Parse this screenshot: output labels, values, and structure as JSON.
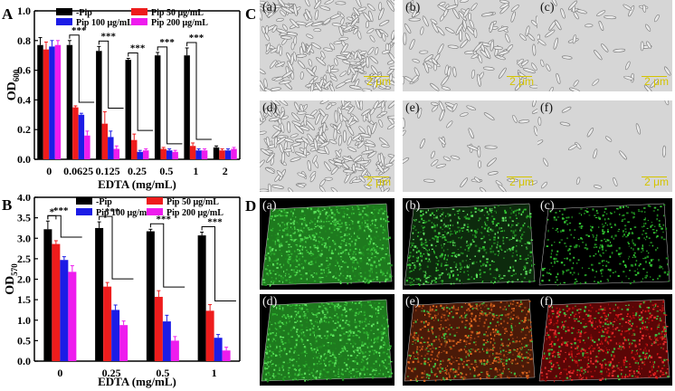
{
  "panel_A": {
    "letter": "A",
    "chart_data": {
      "type": "bar",
      "categories": [
        "0",
        "0.0625",
        "0.125",
        "0.25",
        "0.5",
        "1",
        "2"
      ],
      "series": [
        {
          "name": "-Pip",
          "color": "#000000",
          "values": [
            0.77,
            0.77,
            0.73,
            0.67,
            0.7,
            0.7,
            0.08
          ],
          "err": [
            0.05,
            0.03,
            0.03,
            0.01,
            0.02,
            0.05,
            0.01
          ]
        },
        {
          "name": "Pip 50 μg/mL",
          "color": "#ee1c1c",
          "values": [
            0.74,
            0.35,
            0.24,
            0.13,
            0.07,
            0.09,
            0.06
          ],
          "err": [
            0.05,
            0.01,
            0.08,
            0.04,
            0.01,
            0.02,
            0.01
          ]
        },
        {
          "name": "Pip 100 μg/mL",
          "color": "#1c1ce6",
          "values": [
            0.76,
            0.3,
            0.15,
            0.05,
            0.06,
            0.06,
            0.06
          ],
          "err": [
            0.04,
            0.01,
            0.04,
            0.01,
            0.01,
            0.01,
            0.01
          ]
        },
        {
          "name": "Pip 200 μg/mL",
          "color": "#ee1cee",
          "values": [
            0.77,
            0.16,
            0.07,
            0.06,
            0.05,
            0.06,
            0.07
          ],
          "err": [
            0.03,
            0.03,
            0.02,
            0.01,
            0.01,
            0.01,
            0.01
          ]
        }
      ],
      "xlabel": "EDTA (mg/mL)",
      "ylabel": "OD",
      "ylabel_sub": "600",
      "ylim": [
        0,
        1.0
      ],
      "yticks": [
        "0.0",
        "0.2",
        "0.4",
        "0.6",
        "0.8",
        "1.0"
      ],
      "significance": "***",
      "legend_position": "top"
    }
  },
  "panel_B": {
    "letter": "B",
    "chart_data": {
      "type": "bar",
      "categories": [
        "0",
        "0.25",
        "0.5",
        "1"
      ],
      "series": [
        {
          "name": "-Pip",
          "color": "#000000",
          "values": [
            3.22,
            3.25,
            3.17,
            3.07
          ],
          "err": [
            0.2,
            0.15,
            0.05,
            0.08
          ]
        },
        {
          "name": "Pip 50 μg/mL",
          "color": "#ee1c1c",
          "values": [
            2.86,
            1.82,
            1.57,
            1.23
          ],
          "err": [
            0.08,
            0.1,
            0.15,
            0.15
          ]
        },
        {
          "name": "Pip 100 μg/mL",
          "color": "#1c1ce6",
          "values": [
            2.47,
            1.25,
            0.97,
            0.57
          ],
          "err": [
            0.08,
            0.12,
            0.15,
            0.08
          ]
        },
        {
          "name": "Pip 200 μg/mL",
          "color": "#ee1cee",
          "values": [
            2.18,
            0.88,
            0.5,
            0.26
          ],
          "err": [
            0.15,
            0.1,
            0.1,
            0.08
          ]
        }
      ],
      "xlabel": "EDTA (mg/mL)",
      "ylabel": "OD",
      "ylabel_sub": "570",
      "ylim": [
        0,
        4.0
      ],
      "yticks": [
        "0.0",
        "0.5",
        "1.0",
        "1.5",
        "2.0",
        "2.5",
        "3.0",
        "3.5",
        "4.0"
      ],
      "significance_first": "*",
      "significance": "***",
      "legend_position": "top"
    }
  },
  "panel_C": {
    "letter": "C",
    "tiles": [
      {
        "label": "(a)",
        "scale": "2 μm",
        "density": "dense"
      },
      {
        "label": "(b)",
        "scale": "2 μm",
        "density": "medium"
      },
      {
        "label": "(c)",
        "scale": "2 μm",
        "density": "sparse"
      },
      {
        "label": "(d)",
        "scale": "2 μm",
        "density": "dense"
      },
      {
        "label": "(e)",
        "scale": "2 μm",
        "density": "sparse"
      },
      {
        "label": "(f)",
        "scale": "2 μm",
        "density": "very-sparse"
      }
    ]
  },
  "panel_D": {
    "letter": "D",
    "tiles": [
      {
        "label": "(a)",
        "stain": "green-dense"
      },
      {
        "label": "(b)",
        "stain": "green-medium"
      },
      {
        "label": "(c)",
        "stain": "green-sparse"
      },
      {
        "label": "(d)",
        "stain": "green-dense"
      },
      {
        "label": "(e)",
        "stain": "red-orange"
      },
      {
        "label": "(f)",
        "stain": "red"
      }
    ]
  }
}
